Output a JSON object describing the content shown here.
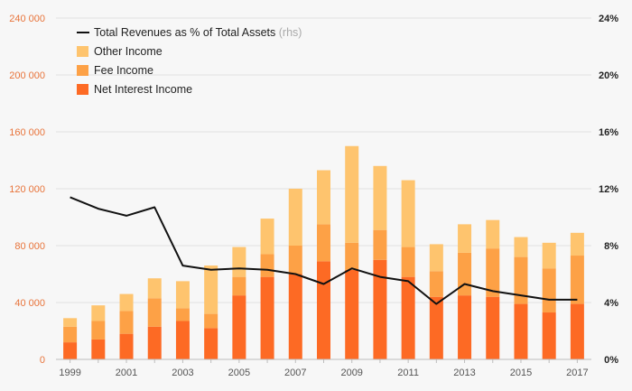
{
  "chart_data": {
    "type": "bar",
    "stacked": true,
    "x": [
      "1999",
      "2000",
      "2001",
      "2002",
      "2003",
      "2004",
      "2005",
      "2006",
      "2007",
      "2008",
      "2009",
      "2010",
      "2011",
      "2012",
      "2013",
      "2014",
      "2015",
      "2016",
      "2017"
    ],
    "x_tick_labels": [
      "1999",
      "2001",
      "2003",
      "2005",
      "2007",
      "2009",
      "2011",
      "2013",
      "2015",
      "2017"
    ],
    "series": [
      {
        "name": "Net Interest Income",
        "type": "bar",
        "color": "#fd6a24",
        "values": [
          12000,
          14000,
          18000,
          23000,
          27000,
          22000,
          45000,
          58000,
          60000,
          69000,
          63000,
          70000,
          58000,
          44000,
          45000,
          44000,
          39000,
          33000,
          39000
        ]
      },
      {
        "name": "Fee Income",
        "type": "bar",
        "color": "#fda146",
        "values": [
          11000,
          13000,
          16000,
          20000,
          9000,
          10000,
          13000,
          16000,
          20000,
          26000,
          19000,
          21000,
          21000,
          18000,
          30000,
          34000,
          33000,
          31000,
          34000
        ]
      },
      {
        "name": "Other Income",
        "type": "bar",
        "color": "#fec46e",
        "values": [
          6000,
          11000,
          12000,
          14000,
          19000,
          34000,
          21000,
          25000,
          40000,
          38000,
          68000,
          45000,
          47000,
          19000,
          20000,
          20000,
          14000,
          18000,
          16000
        ]
      },
      {
        "name": "Total Revenues as % of Total Assets",
        "type": "line",
        "axis": "right",
        "color": "#111111",
        "values": [
          11.4,
          10.6,
          10.1,
          10.7,
          6.6,
          6.3,
          6.4,
          6.3,
          6.0,
          5.3,
          6.4,
          5.8,
          5.5,
          3.9,
          5.3,
          4.8,
          4.5,
          4.2,
          4.2
        ]
      }
    ],
    "y_left": {
      "ylim": [
        0,
        240000
      ],
      "ticks": [
        "0",
        "40 000",
        "80 000",
        "120 000",
        "160 000",
        "200 000",
        "240 000"
      ],
      "color": "#e8743b"
    },
    "y_right": {
      "ylim": [
        0,
        24
      ],
      "ticks": [
        "0%",
        "4%",
        "8%",
        "12%",
        "16%",
        "20%",
        "24%"
      ]
    },
    "legend": {
      "position": "top-left",
      "entries": [
        {
          "label": "Total Revenues as % of Total Assets",
          "suffix": "(rhs)",
          "kind": "line",
          "color": "#111111"
        },
        {
          "label": "Other Income",
          "kind": "box",
          "color": "#fec46e"
        },
        {
          "label": "Fee Income",
          "kind": "box",
          "color": "#fda146"
        },
        {
          "label": "Net Interest Income",
          "kind": "box",
          "color": "#fd6a24"
        }
      ]
    },
    "grid": true
  }
}
